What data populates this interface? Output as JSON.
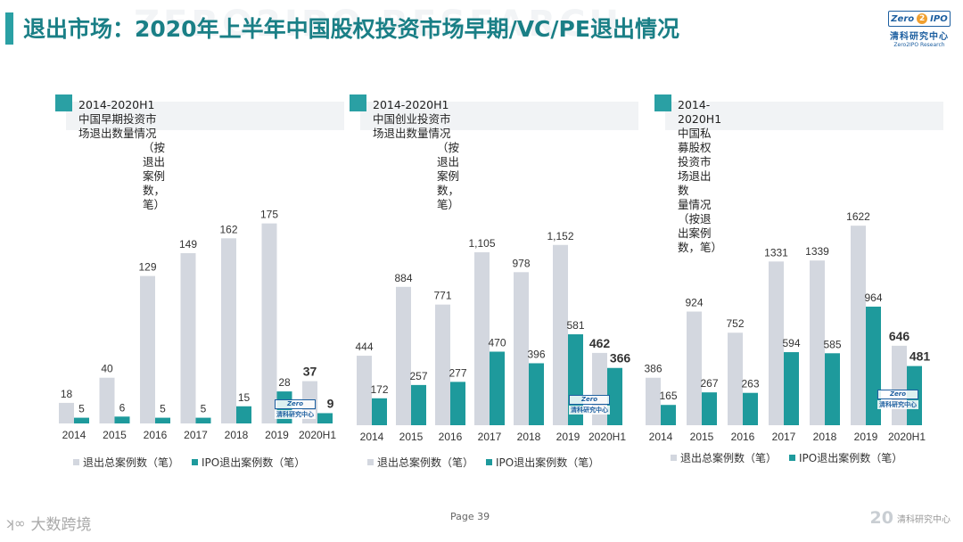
{
  "header": {
    "title": "退出市场：2020年上半年中国股权投资市场早期/VC/PE退出情况",
    "logo_top_left": "Zero",
    "logo_top_mid": "2",
    "logo_top_right": "IPO",
    "logo_cn": "清科研究中心",
    "logo_en": "Zero2IPO Research",
    "watermark": "ZERO2IPO RESEARCH"
  },
  "colors": {
    "accent": "#2aa0a4",
    "title": "#1a7f86",
    "total_bar": "#d3d7df",
    "ipo_bar": "#1e9a9c"
  },
  "panels": [
    {
      "header_line1": "2014-2020H1中国早期投资市场退出数量情况",
      "header_line2": "（按退出案例数，笔）"
    },
    {
      "header_line1": "2014-2020H1中国创业投资市场退出数量情况",
      "header_line2": "（按退出案例数，笔）"
    },
    {
      "header_line1": "2014-2020H1中国私募股权投资市场退出数",
      "header_line2": "量情况（按退出案例数，笔）"
    }
  ],
  "chart_data": [
    {
      "type": "bar",
      "categories": [
        "2014",
        "2015",
        "2016",
        "2017",
        "2018",
        "2019",
        "2020H1"
      ],
      "series": [
        {
          "name": "退出总案例数（笔）",
          "values": [
            18,
            40,
            129,
            149,
            162,
            175,
            37
          ]
        },
        {
          "name": "IPO退出案例数（笔）",
          "values": [
            5,
            6,
            5,
            5,
            15,
            28,
            9
          ]
        }
      ],
      "ylim": [
        0,
        195
      ],
      "grid": false,
      "legend": "bottom"
    },
    {
      "type": "bar",
      "categories": [
        "2014",
        "2015",
        "2016",
        "2017",
        "2018",
        "2019",
        "2020H1"
      ],
      "series": [
        {
          "name": "退出总案例数（笔）",
          "values": [
            444,
            884,
            771,
            1105,
            978,
            1152,
            462
          ]
        },
        {
          "name": "IPO退出案例数（笔）",
          "values": [
            172,
            257,
            277,
            470,
            396,
            581,
            366
          ]
        }
      ],
      "value_labels": [
        [
          "444",
          "884",
          "771",
          "1,105",
          "978",
          "1,152",
          "462"
        ],
        [
          "172",
          "257",
          "277",
          "470",
          "396",
          "581",
          "366"
        ]
      ],
      "ylim": [
        0,
        1350
      ],
      "grid": false,
      "legend": "bottom"
    },
    {
      "type": "bar",
      "categories": [
        "2014",
        "2015",
        "2016",
        "2017",
        "2018",
        "2019",
        "2020H1"
      ],
      "series": [
        {
          "name": "退出总案例数（笔）",
          "values": [
            386,
            924,
            752,
            1331,
            1339,
            1622,
            646
          ]
        },
        {
          "name": "IPO退出案例数（笔）",
          "values": [
            165,
            267,
            263,
            594,
            585,
            964,
            481
          ]
        }
      ],
      "ylim": [
        0,
        1790
      ],
      "grid": false,
      "legend": "bottom"
    }
  ],
  "footer": {
    "page": "Page  39",
    "left_brand": "大数跨境",
    "right_big": "20",
    "right_text": "清科研究中心"
  }
}
